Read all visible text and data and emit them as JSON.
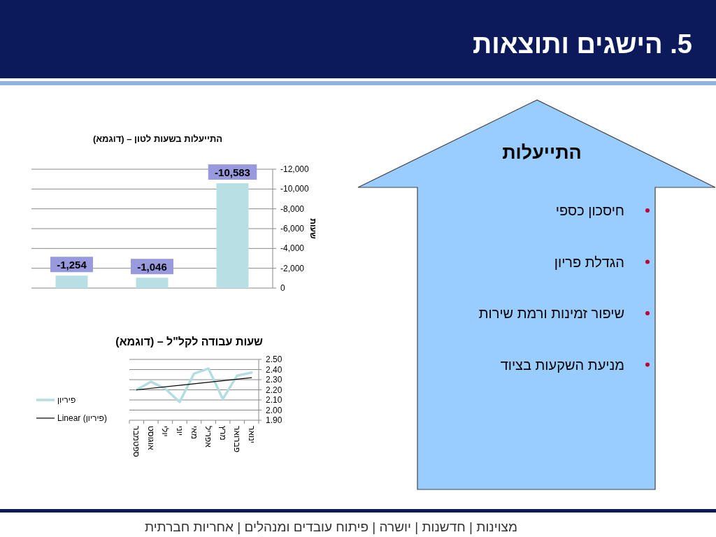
{
  "chart_data": [
    {
      "type": "other",
      "title": "5. הישגים ותוצאות",
      "annotations": [
        "מצוינות | חדשנות | יושרה | פיתוח עובדים ומנהלים | אחריות חברתית"
      ]
    },
    {
      "type": "bar",
      "title": "התייעלות בשעות לטון – (דוגמא)",
      "ylabel": "שעות",
      "categories": [
        null,
        null,
        null
      ],
      "values": [
        -1254,
        -1046,
        -10583
      ],
      "value_labels": [
        "-1,254",
        "-1,046",
        "-10,583"
      ],
      "color": "#b8dfe3",
      "ylim": [
        0,
        -12000
      ],
      "yticks": [
        0,
        {
          "value": -2000,
          "label": "-2,000"
        },
        {
          "value": -4000,
          "label": "-4,000"
        },
        {
          "value": -6000,
          "label": "-6,000"
        },
        {
          "value": -8000,
          "label": "-8,000"
        },
        {
          "value": -10000,
          "label": "-10,000"
        },
        {
          "value": -12000,
          "label": "-12,000"
        }
      ],
      "grid": "y"
    },
    {
      "type": "line",
      "title": "שעות עבודה לקל\"ל – (דוגמא)",
      "categories": [
        "ספטמבר",
        "אוגוסט",
        "יולי",
        "יוני",
        "מאי",
        "אפריל",
        "מרץ",
        "פברואר",
        "ינואר"
      ],
      "series": [
        {
          "name": "פיריון",
          "color": "#b4dde2",
          "values": [
            2.2,
            2.28,
            2.21,
            2.08,
            2.36,
            2.41,
            2.11,
            2.34,
            2.37
          ]
        },
        {
          "name": "Linear (פיריון)",
          "type": "line",
          "color": "#000000",
          "x": [
            "ספטמבר",
            "ינואר"
          ],
          "values": [
            2.2,
            2.32
          ]
        }
      ],
      "ylim": [
        1.9,
        2.5
      ],
      "yticks": [
        {
          "value": 1.9,
          "label": "1.90"
        },
        {
          "value": 2.0,
          "label": "2.00"
        },
        {
          "value": 2.1,
          "label": "2.10"
        },
        {
          "value": 2.2,
          "label": "2.20"
        },
        {
          "value": 2.3,
          "label": "2.30"
        },
        {
          "value": 2.4,
          "label": "2.40"
        },
        {
          "value": 2.5,
          "label": "2.50"
        }
      ],
      "grid": "y",
      "legend": "left"
    },
    {
      "type": "other",
      "title": "התייעלות",
      "annotations": [
        "חיסכון כספי",
        "הגדלת פריון",
        "שיפור זמינות ורמת שירות",
        "מניעת השקעות בציוד"
      ]
    }
  ]
}
